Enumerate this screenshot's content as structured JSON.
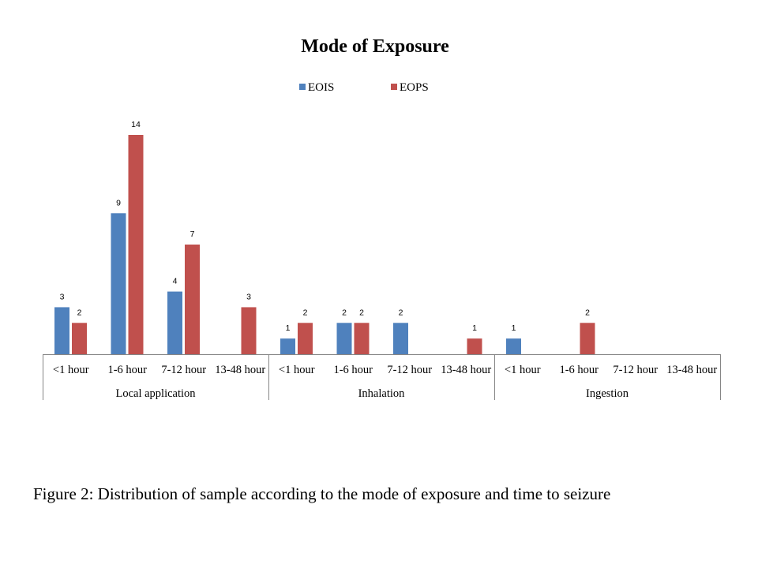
{
  "chart_data": {
    "type": "bar",
    "title": "Mode of Exposure",
    "legend_position": "top",
    "groups": [
      {
        "name": "Local application",
        "categories": [
          "<1 hour",
          "1-6 hour",
          "7-12 hour",
          "13-48 hour"
        ]
      },
      {
        "name": "Inhalation",
        "categories": [
          "<1 hour",
          "1-6 hour",
          "7-12 hour",
          "13-48 hour"
        ]
      },
      {
        "name": "Ingestion",
        "categories": [
          "<1 hour",
          "1-6 hour",
          "7-12 hour",
          "13-48 hour"
        ]
      }
    ],
    "series": [
      {
        "name": "EOIS",
        "color": "#4F81BD",
        "values": [
          3,
          9,
          4,
          null,
          1,
          2,
          2,
          null,
          1,
          null,
          null,
          null
        ]
      },
      {
        "name": "EOPS",
        "color": "#C0504D",
        "values": [
          2,
          14,
          7,
          3,
          2,
          2,
          null,
          1,
          null,
          2,
          null,
          null
        ]
      }
    ],
    "ylim": [
      0,
      14
    ],
    "xlabel": "",
    "ylabel": "",
    "grid": false
  },
  "caption": "Figure 2: Distribution of sample according to the mode of exposure and time to seizure"
}
